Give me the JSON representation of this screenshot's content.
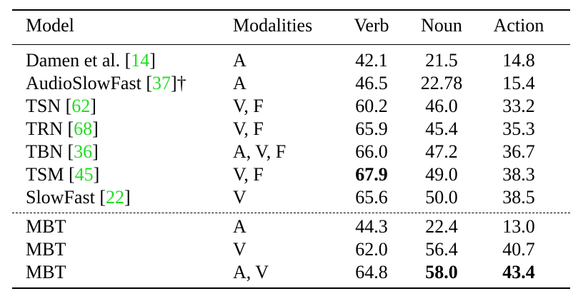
{
  "header": {
    "model": "Model",
    "modalities": "Modalities",
    "verb": "Verb",
    "noun": "Noun",
    "action": "Action"
  },
  "rows": [
    {
      "model": "Damen et al. ",
      "ref": "14",
      "suffix": "",
      "modalities": "A",
      "verb": "42.1",
      "noun": "21.5",
      "action": "14.8"
    },
    {
      "model": "AudioSlowFast ",
      "ref": "37",
      "suffix": "†",
      "modalities": "A",
      "verb": "46.5",
      "noun": "22.78",
      "action": "15.4"
    },
    {
      "model": "TSN ",
      "ref": "62",
      "suffix": "",
      "modalities": "V, F",
      "verb": "60.2",
      "noun": "46.0",
      "action": "33.2"
    },
    {
      "model": "TRN ",
      "ref": "68",
      "suffix": "",
      "modalities": "V, F",
      "verb": "65.9",
      "noun": "45.4",
      "action": "35.3"
    },
    {
      "model": "TBN ",
      "ref": "36",
      "suffix": "",
      "modalities": "A, V, F",
      "verb": "66.0",
      "noun": "47.2",
      "action": "36.7"
    },
    {
      "model": "TSM ",
      "ref": "45",
      "suffix": "",
      "modalities": "V, F",
      "verb": "67.9",
      "noun": "49.0",
      "action": "38.3"
    },
    {
      "model": "SlowFast ",
      "ref": "22",
      "suffix": "",
      "modalities": "V",
      "verb": "65.6",
      "noun": "50.0",
      "action": "38.5"
    },
    {
      "model": "MBT",
      "ref": "",
      "suffix": "",
      "modalities": "A",
      "verb": "44.3",
      "noun": "22.4",
      "action": "13.0"
    },
    {
      "model": "MBT",
      "ref": "",
      "suffix": "",
      "modalities": "V",
      "verb": "62.0",
      "noun": "56.4",
      "action": "40.7"
    },
    {
      "model": "MBT",
      "ref": "",
      "suffix": "",
      "modalities": "A, V",
      "verb": "64.8",
      "noun": "58.0",
      "action": "43.4"
    }
  ],
  "citation_color": "#22dd22"
}
